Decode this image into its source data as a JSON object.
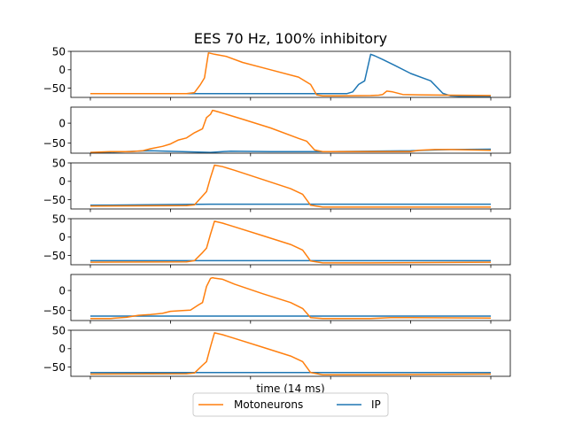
{
  "title": "EES 70 Hz, 100% inhibitory",
  "xlabel": "time (14 ms)",
  "colors": {
    "Motoneurons": "#ff7f0e",
    "IP": "#1f77b4"
  },
  "legend": {
    "placement": "bottom-center",
    "entries": [
      "Motoneurons",
      "IP"
    ]
  },
  "chart_data": {
    "type": "line",
    "title": "EES 70 Hz, 100% inhibitory",
    "xlabel": "time (14 ms)",
    "xlim": [
      0,
      100
    ],
    "panels": [
      {
        "ylim": [
          -75,
          50
        ],
        "yticks": [
          50,
          0,
          -50
        ],
        "series": [
          {
            "name": "Motoneurons",
            "x": [
              0,
              24,
              26,
              27.5,
              28.5,
              29.5,
              31,
              34,
              38,
              45,
              52,
              55,
              56.5,
              58,
              62,
              70,
              72,
              73,
              74,
              75.5,
              78,
              82,
              90,
              100
            ],
            "y": [
              -65,
              -65,
              -62,
              -40,
              -22,
              46,
              42,
              36,
              20,
              0,
              -20,
              -40,
              -68,
              -71,
              -71,
              -70,
              -69,
              -67,
              -58,
              -60,
              -67,
              -68,
              -69,
              -70
            ]
          },
          {
            "name": "IP",
            "x": [
              0,
              30,
              45,
              60,
              64,
              65.5,
              67,
              68.5,
              70,
              71,
              73,
              76,
              80,
              85,
              88,
              90,
              92,
              100
            ],
            "y": [
              -65,
              -65,
              -65,
              -65,
              -65,
              -60,
              -40,
              -30,
              42,
              38,
              28,
              12,
              -10,
              -30,
              -64,
              -71,
              -72,
              -72
            ]
          }
        ]
      },
      {
        "ylim": [
          -75,
          40
        ],
        "yticks": [
          0,
          -50
        ],
        "series": [
          {
            "name": "Motoneurons",
            "x": [
              0,
              5,
              10,
              13,
              15,
              18,
              20,
              22,
              24,
              26,
              28,
              29,
              30,
              30.5,
              31,
              32,
              34,
              38,
              45,
              52,
              54,
              56,
              58,
              62,
              80,
              82,
              86,
              90,
              100
            ],
            "y": [
              -73,
              -71,
              -71,
              -69,
              -64,
              -58,
              -52,
              -42,
              -37,
              -24,
              -14,
              14,
              22,
              32,
              31,
              28,
              22,
              10,
              -12,
              -38,
              -45,
              -67,
              -71,
              -71,
              -71,
              -68,
              -66,
              -66,
              -68
            ]
          },
          {
            "name": "IP",
            "x": [
              0,
              15,
              30,
              35,
              45,
              55,
              60,
              70,
              80,
              86,
              90,
              100
            ],
            "y": [
              -74,
              -69,
              -73,
              -70,
              -71,
              -71,
              -71,
              -70,
              -69,
              -67,
              -66,
              -65
            ]
          }
        ]
      },
      {
        "ylim": [
          -75,
          50
        ],
        "yticks": [
          50,
          0,
          -50
        ],
        "series": [
          {
            "name": "Motoneurons",
            "x": [
              0,
              24,
              26,
              28,
              29,
              30,
              31,
              33,
              36,
              43,
              50,
              53,
              55,
              58,
              65,
              100
            ],
            "y": [
              -67,
              -66,
              -64,
              -40,
              -28,
              10,
              44,
              40,
              30,
              5,
              -20,
              -35,
              -65,
              -70,
              -70,
              -70
            ]
          },
          {
            "name": "IP",
            "x": [
              0,
              20,
              30,
              60,
              100
            ],
            "y": [
              -65,
              -63,
              -62,
              -62,
              -62
            ]
          }
        ]
      },
      {
        "ylim": [
          -75,
          50
        ],
        "yticks": [
          50,
          0,
          -50
        ],
        "series": [
          {
            "name": "Motoneurons",
            "x": [
              0,
              24,
              26,
              28,
              29,
              30,
              31,
              33,
              36,
              43,
              50,
              53,
              55,
              58,
              70,
              100
            ],
            "y": [
              -68,
              -67,
              -64,
              -42,
              -30,
              8,
              43,
              38,
              28,
              4,
              -20,
              -35,
              -65,
              -70,
              -70,
              -68
            ]
          },
          {
            "name": "IP",
            "x": [
              0,
              100
            ],
            "y": [
              -64,
              -64
            ]
          }
        ]
      },
      {
        "ylim": [
          -75,
          40
        ],
        "yticks": [
          0,
          -50
        ],
        "series": [
          {
            "name": "Motoneurons",
            "x": [
              0,
              5,
              9,
              12,
              15,
              18,
              20,
              23,
              25,
              27,
              28,
              29,
              30,
              30.5,
              31,
              33,
              36,
              43,
              50,
              53,
              55,
              58,
              70,
              75,
              80,
              100
            ],
            "y": [
              -70,
              -70,
              -67,
              -62,
              -60,
              -57,
              -52,
              -50,
              -49,
              -36,
              -30,
              10,
              30,
              32,
              31,
              28,
              16,
              -8,
              -30,
              -45,
              -68,
              -70,
              -70,
              -68,
              -68,
              -69
            ]
          },
          {
            "name": "IP",
            "x": [
              0,
              100
            ],
            "y": [
              -64,
              -64
            ]
          }
        ]
      },
      {
        "ylim": [
          -75,
          50
        ],
        "yticks": [
          50,
          0,
          -50
        ],
        "series": [
          {
            "name": "Motoneurons",
            "x": [
              0,
              24,
              26,
              28,
              29,
              30,
              31,
              33,
              36,
              43,
              50,
              53,
              55,
              58,
              70,
              100
            ],
            "y": [
              -69,
              -68,
              -66,
              -45,
              -35,
              5,
              43,
              38,
              28,
              4,
              -20,
              -35,
              -65,
              -71,
              -71,
              -69
            ]
          },
          {
            "name": "IP",
            "x": [
              0,
              100
            ],
            "y": [
              -65,
              -65
            ]
          }
        ]
      }
    ]
  }
}
